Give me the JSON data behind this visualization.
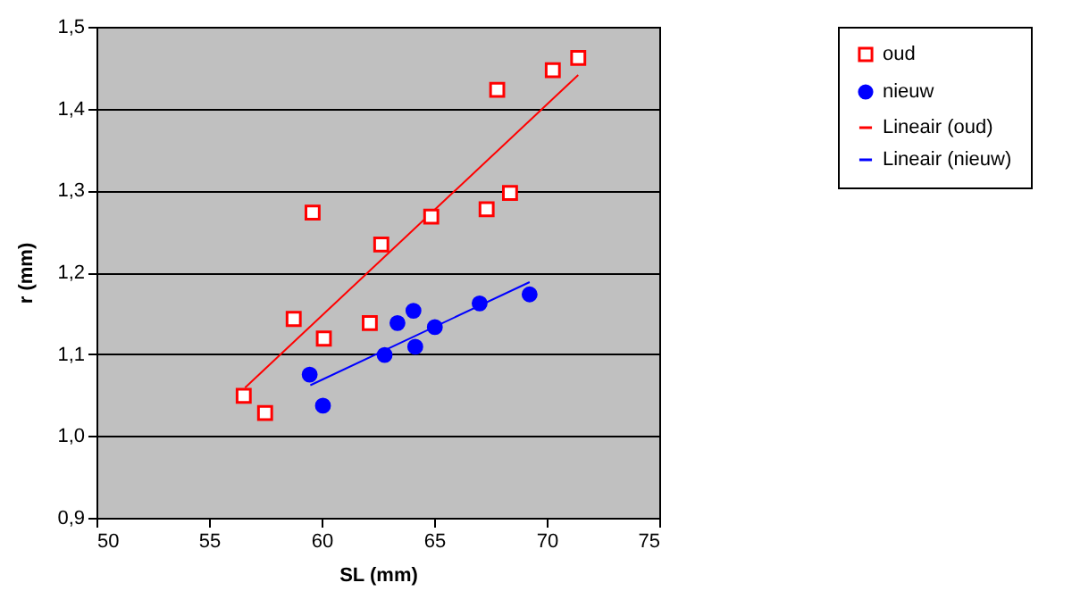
{
  "chart_data": {
    "type": "scatter",
    "xlabel": "SL (mm)",
    "ylabel": "r (mm)",
    "xlim": [
      50,
      75
    ],
    "xticks": [
      50,
      55,
      60,
      65,
      70,
      75
    ],
    "ylim": [
      0.9,
      1.5
    ],
    "yticks": [
      {
        "value": 0.9,
        "label": "0,9"
      },
      {
        "value": 1.0,
        "label": "1,0"
      },
      {
        "value": 1.1,
        "label": "1,1"
      },
      {
        "value": 1.2,
        "label": "1,2"
      },
      {
        "value": 1.3,
        "label": "1,3"
      },
      {
        "value": 1.4,
        "label": "1,4"
      },
      {
        "value": 1.5,
        "label": "1,5"
      }
    ],
    "grid": "y",
    "legend": "right",
    "series": [
      {
        "name": "oud",
        "marker": "square",
        "color": "#ff0000",
        "x": [
          59.6,
          62.65,
          64.87,
          67.33,
          68.37,
          67.8,
          70.27,
          71.4,
          58.76,
          60.1,
          62.14,
          56.54,
          57.49
        ],
        "values": [
          1.273,
          1.234,
          1.268,
          1.277,
          1.297,
          1.423,
          1.447,
          1.462,
          1.143,
          1.119,
          1.138,
          1.049,
          1.028
        ]
      },
      {
        "name": "nieuw",
        "marker": "circle",
        "color": "#0000ff",
        "x": [
          59.47,
          60.06,
          62.8,
          63.37,
          64.08,
          64.16,
          65.03,
          67.02,
          69.24
        ],
        "values": [
          1.075,
          1.037,
          1.099,
          1.138,
          1.153,
          1.109,
          1.133,
          1.162,
          1.173
        ]
      },
      {
        "name": "Lineair (oud)",
        "type": "line",
        "line_style": "solid",
        "color": "#ff0000",
        "x": [
          56.6,
          71.4
        ],
        "values": [
          1.059,
          1.441
        ]
      },
      {
        "name": "Lineair (nieuw)",
        "type": "line",
        "line_style": "solid",
        "color": "#0000ff",
        "x": [
          59.5,
          69.24
        ],
        "values": [
          1.062,
          1.188
        ]
      }
    ]
  }
}
